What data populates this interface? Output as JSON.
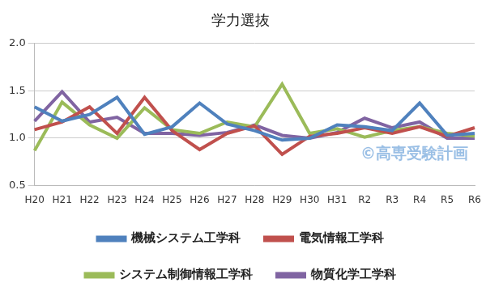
{
  "chart_data": {
    "type": "line",
    "title": "学力選抜",
    "categories": [
      "H20",
      "H21",
      "H22",
      "H23",
      "H24",
      "H25",
      "H26",
      "H27",
      "H28",
      "H29",
      "H30",
      "H31",
      "R2",
      "R3",
      "R4",
      "R5",
      "R6"
    ],
    "series": [
      {
        "name": "機械システム工学科",
        "color": "#4f81bd",
        "values": [
          1.33,
          1.18,
          1.25,
          1.43,
          1.04,
          1.12,
          1.37,
          1.15,
          1.08,
          0.98,
          1.0,
          1.14,
          1.12,
          1.08,
          1.37,
          1.03,
          1.05
        ]
      },
      {
        "name": "電気情報工学科",
        "color": "#c0504d",
        "values": [
          1.09,
          1.17,
          1.33,
          1.05,
          1.43,
          1.08,
          0.88,
          1.05,
          1.13,
          0.83,
          1.02,
          1.05,
          1.11,
          1.05,
          1.12,
          1.02,
          1.11
        ]
      },
      {
        "name": "システム制御情報工学科",
        "color": "#9bbb59",
        "values": [
          0.87,
          1.38,
          1.14,
          1.0,
          1.32,
          1.09,
          1.05,
          1.17,
          1.12,
          1.57,
          1.05,
          1.1,
          1.01,
          1.08,
          1.12,
          1.05,
          1.02
        ]
      },
      {
        "name": "物質化学工学科",
        "color": "#8064a2",
        "values": [
          1.18,
          1.49,
          1.17,
          1.22,
          1.05,
          1.05,
          1.03,
          1.06,
          1.14,
          1.03,
          1.0,
          1.06,
          1.21,
          1.11,
          1.17,
          1.0,
          1.0
        ]
      }
    ],
    "ylim": [
      0.5,
      2.0
    ],
    "yticks": [
      0.5,
      {
        "value": 1.0,
        "label": "1.0"
      },
      1.5,
      {
        "value": 2.0,
        "label": "2.0"
      }
    ],
    "grid": true,
    "legend": "bottom",
    "marker": "none",
    "annotations": [
      {
        "text": "©高専受験計画"
      }
    ]
  }
}
